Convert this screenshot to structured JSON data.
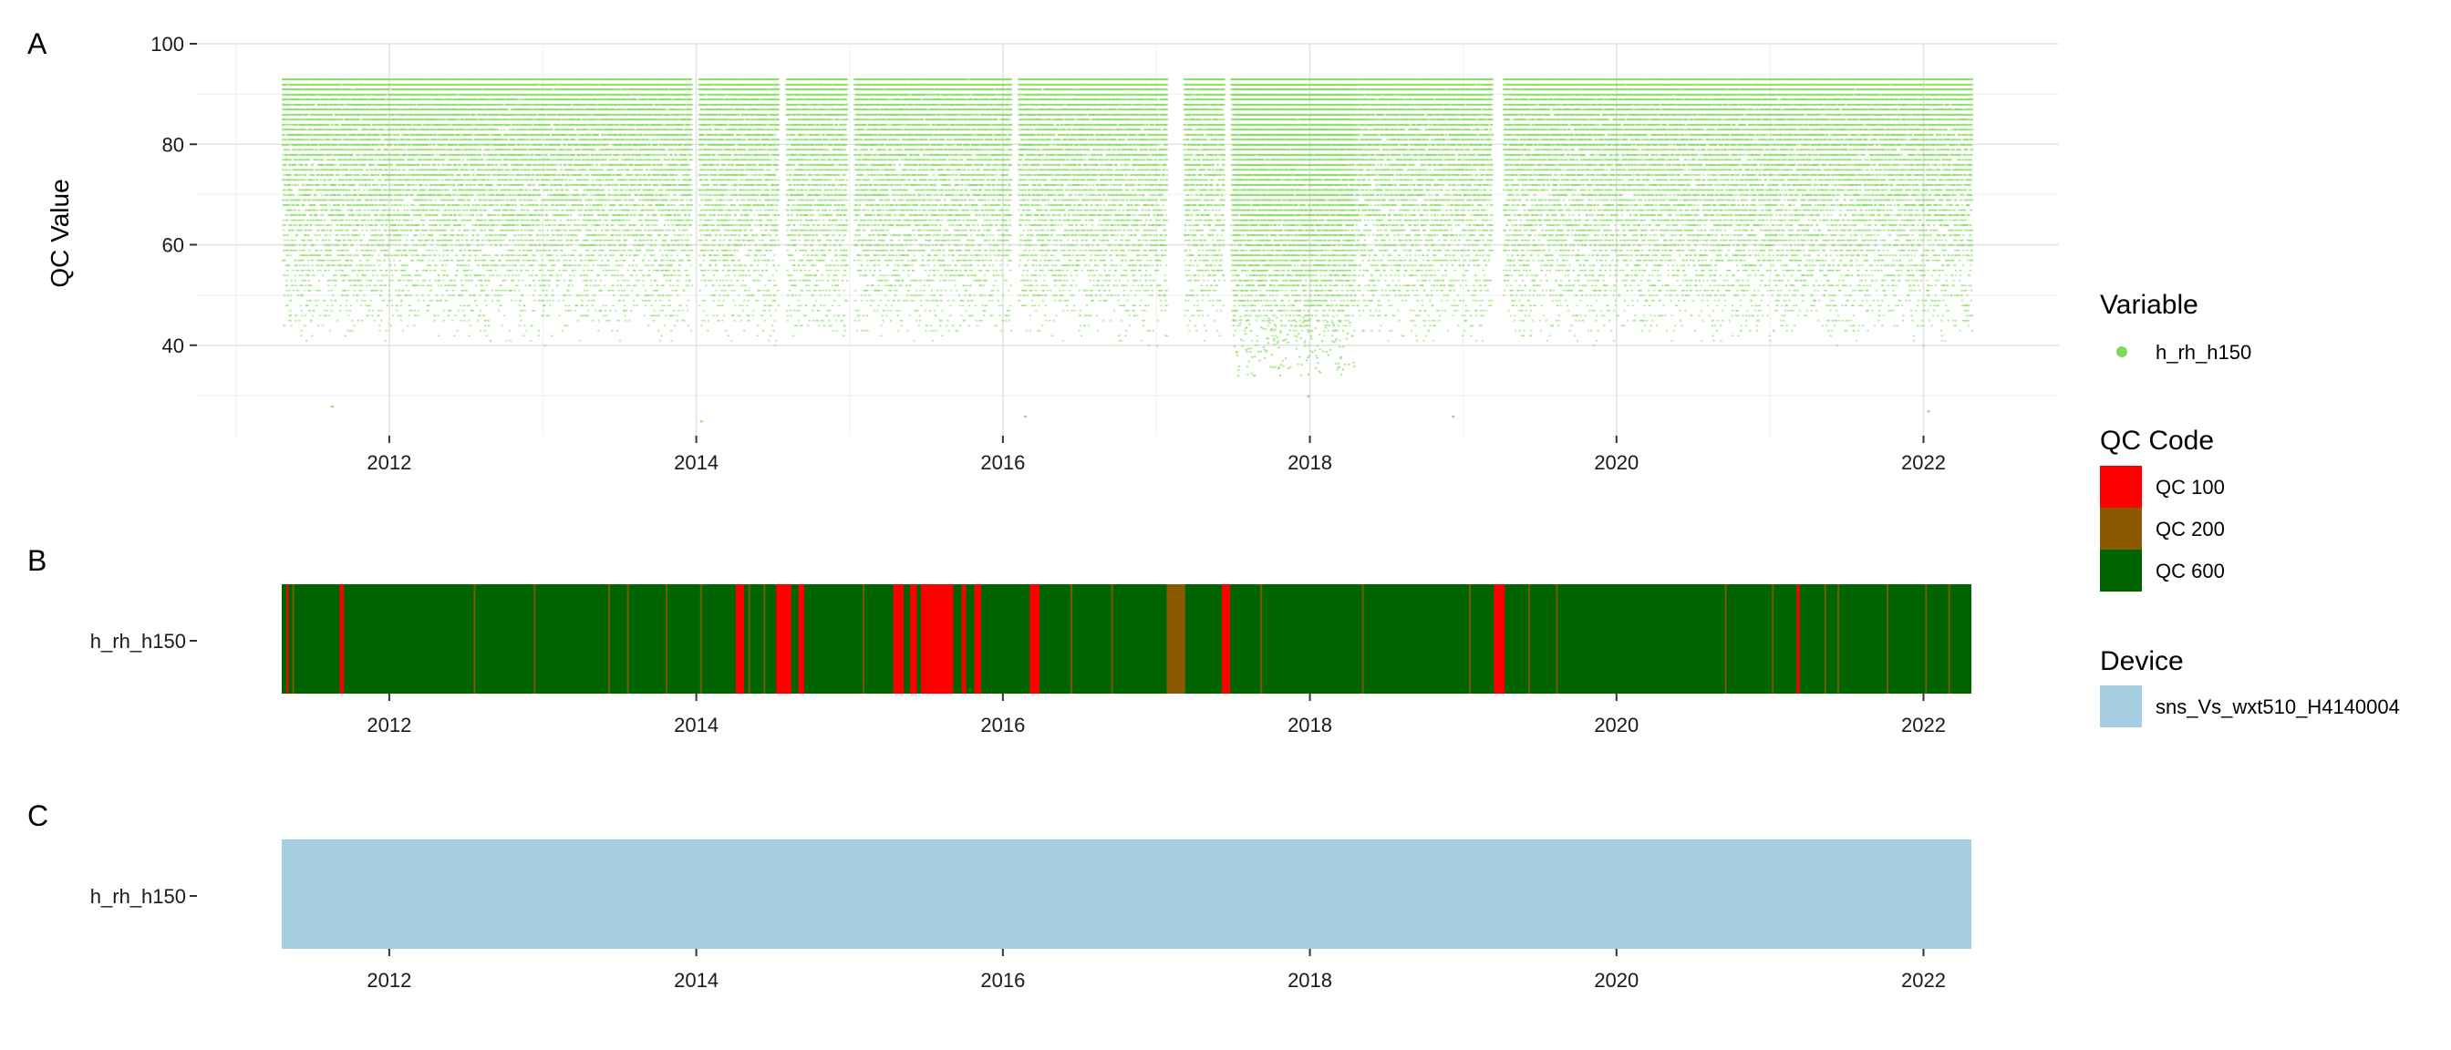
{
  "panels": {
    "a": "A",
    "b": "B",
    "c": "C"
  },
  "chart_data": [
    {
      "type": "scatter",
      "panel": "A",
      "ylabel": "QC Value",
      "xlabel": "",
      "xlim": [
        "2011-04-20",
        "2022-04-25"
      ],
      "ylim": [
        22,
        100
      ],
      "x_ticks": [
        "2012",
        "2014",
        "2016",
        "2018",
        "2020",
        "2022"
      ],
      "y_ticks": [
        40,
        60,
        80,
        100
      ],
      "grid": true,
      "series": [
        {
          "name": "h_rh_h150",
          "color": "#7ed957",
          "typical_range": [
            43,
            93
          ],
          "dense_period": [
            "2017-07-01",
            "2018-04-15"
          ],
          "low_outliers": [
            {
              "x": "2011-08-15",
              "y": 28
            },
            {
              "x": "2014-01-10",
              "y": 25
            },
            {
              "x": "2016-02-20",
              "y": 26
            },
            {
              "x": "2017-12-25",
              "y": 30
            },
            {
              "x": "2018-12-05",
              "y": 26
            },
            {
              "x": "2022-01-10",
              "y": 27
            }
          ]
        }
      ]
    },
    {
      "type": "heatmap",
      "panel": "B",
      "row_label": "h_rh_h150",
      "xlim": [
        "2011-04-20",
        "2022-04-25"
      ],
      "x_ticks": [
        "2012",
        "2014",
        "2016",
        "2018",
        "2020",
        "2022"
      ],
      "base_code": "QC 600",
      "segments": [
        {
          "code": "QC 100",
          "from": "2011-05-01",
          "to": "2011-05-06"
        },
        {
          "code": "QC 100",
          "from": "2011-09-05",
          "to": "2011-09-15"
        },
        {
          "code": "QC 100",
          "from": "2014-04-05",
          "to": "2014-04-25"
        },
        {
          "code": "QC 100",
          "from": "2014-07-10",
          "to": "2014-08-15"
        },
        {
          "code": "QC 100",
          "from": "2014-09-01",
          "to": "2014-09-15"
        },
        {
          "code": "QC 100",
          "from": "2015-04-15",
          "to": "2015-05-10"
        },
        {
          "code": "QC 100",
          "from": "2015-05-25",
          "to": "2015-06-10"
        },
        {
          "code": "QC 100",
          "from": "2015-06-20",
          "to": "2015-09-05"
        },
        {
          "code": "QC 100",
          "from": "2015-09-25",
          "to": "2015-10-05"
        },
        {
          "code": "QC 100",
          "from": "2015-10-25",
          "to": "2015-11-10"
        },
        {
          "code": "QC 100",
          "from": "2016-03-05",
          "to": "2016-03-28"
        },
        {
          "code": "QC 100",
          "from": "2017-06-05",
          "to": "2017-06-25"
        },
        {
          "code": "QC 100",
          "from": "2019-03-15",
          "to": "2019-04-10"
        },
        {
          "code": "QC 100",
          "from": "2021-03-05",
          "to": "2021-03-12"
        },
        {
          "code": "QC 200",
          "from": "2017-01-25",
          "to": "2017-03-10"
        }
      ],
      "thin_marks": [
        "2011-05-15",
        "2012-07-20",
        "2012-12-10",
        "2013-06-05",
        "2013-07-20",
        "2013-10-20",
        "2014-01-10",
        "2014-05-05",
        "2014-06-10",
        "2015-02-01",
        "2016-06-10",
        "2016-09-15",
        "2017-09-05",
        "2018-05-05",
        "2019-01-15",
        "2019-06-05",
        "2019-08-10",
        "2020-09-15",
        "2021-01-05",
        "2021-05-10",
        "2021-06-10",
        "2021-10-05",
        "2022-01-05",
        "2022-03-01"
      ],
      "thin_code": "QC 200"
    },
    {
      "type": "heatmap",
      "panel": "C",
      "row_label": "h_rh_h150",
      "xlim": [
        "2011-04-20",
        "2022-04-25"
      ],
      "x_ticks": [
        "2012",
        "2014",
        "2016",
        "2018",
        "2020",
        "2022"
      ],
      "segments": [
        {
          "device": "sns_Vs_wxt510_H4140004",
          "from": "2011-04-20",
          "to": "2022-04-25"
        }
      ]
    }
  ],
  "legend": {
    "variable": {
      "title": "Variable",
      "items": [
        {
          "label": "h_rh_h150",
          "color": "#7ed957"
        }
      ]
    },
    "qc_code": {
      "title": "QC Code",
      "items": [
        {
          "label": "QC 100",
          "color": "#ff0000"
        },
        {
          "label": "QC 200",
          "color": "#8b5a00"
        },
        {
          "label": "QC 600",
          "color": "#006400"
        }
      ]
    },
    "device": {
      "title": "Device",
      "items": [
        {
          "label": "sns_Vs_wxt510_H4140004",
          "color": "#a6cee3"
        }
      ]
    }
  }
}
